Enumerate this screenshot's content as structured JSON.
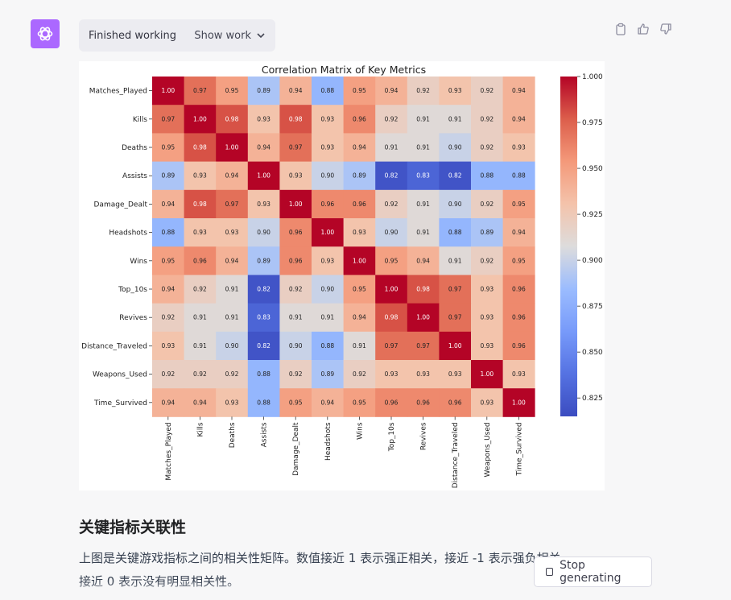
{
  "status": {
    "label": "Finished working",
    "show_label": "Show work"
  },
  "icons": {
    "assistant": "openai-logo-icon",
    "copy": "clipboard-icon",
    "like": "thumbs-up-icon",
    "dislike": "thumbs-down-icon",
    "chevron": "chevron-down-icon"
  },
  "colors": {
    "avatar": "#ab68ff",
    "cmap_low": "#3b4cc0",
    "cmap_mid": "#dddcdc",
    "cmap_high": "#b40426"
  },
  "chart_data": {
    "type": "heatmap",
    "title": "Correlation Matrix of Key Metrics",
    "labels": [
      "Matches_Played",
      "Kills",
      "Deaths",
      "Assists",
      "Damage_Dealt",
      "Headshots",
      "Wins",
      "Top_10s",
      "Revives",
      "Distance_Traveled",
      "Weapons_Used",
      "Time_Survived"
    ],
    "values": [
      [
        1.0,
        0.97,
        0.95,
        0.89,
        0.94,
        0.88,
        0.95,
        0.94,
        0.92,
        0.93,
        0.92,
        0.94
      ],
      [
        0.97,
        1.0,
        0.98,
        0.93,
        0.98,
        0.93,
        0.96,
        0.92,
        0.91,
        0.91,
        0.92,
        0.94
      ],
      [
        0.95,
        0.98,
        1.0,
        0.94,
        0.97,
        0.93,
        0.94,
        0.91,
        0.91,
        0.9,
        0.92,
        0.93
      ],
      [
        0.89,
        0.93,
        0.94,
        1.0,
        0.93,
        0.9,
        0.89,
        0.82,
        0.83,
        0.82,
        0.88,
        0.88
      ],
      [
        0.94,
        0.98,
        0.97,
        0.93,
        1.0,
        0.96,
        0.96,
        0.92,
        0.91,
        0.9,
        0.92,
        0.95
      ],
      [
        0.88,
        0.93,
        0.93,
        0.9,
        0.96,
        1.0,
        0.93,
        0.9,
        0.91,
        0.88,
        0.89,
        0.94
      ],
      [
        0.95,
        0.96,
        0.94,
        0.89,
        0.96,
        0.93,
        1.0,
        0.95,
        0.94,
        0.91,
        0.92,
        0.95
      ],
      [
        0.94,
        0.92,
        0.91,
        0.82,
        0.92,
        0.9,
        0.95,
        1.0,
        0.98,
        0.97,
        0.93,
        0.96
      ],
      [
        0.92,
        0.91,
        0.91,
        0.83,
        0.91,
        0.91,
        0.94,
        0.98,
        1.0,
        0.97,
        0.93,
        0.96
      ],
      [
        0.93,
        0.91,
        0.9,
        0.82,
        0.9,
        0.88,
        0.91,
        0.97,
        0.97,
        1.0,
        0.93,
        0.96
      ],
      [
        0.92,
        0.92,
        0.92,
        0.88,
        0.92,
        0.89,
        0.92,
        0.93,
        0.93,
        0.93,
        1.0,
        0.93
      ],
      [
        0.94,
        0.94,
        0.93,
        0.88,
        0.95,
        0.94,
        0.95,
        0.96,
        0.96,
        0.96,
        0.93,
        1.0
      ]
    ],
    "colorbar": {
      "min": 0.815,
      "max": 1.0,
      "ticks": [
        "0.825",
        "0.850",
        "0.875",
        "0.900",
        "0.925",
        "0.950",
        "0.975",
        "1.000"
      ]
    },
    "colormap": "coolwarm"
  },
  "section": {
    "heading": "关键指标关联性",
    "line1": "上图是关键游戏指标之间的相关性矩阵。数值接近 1 表示强正相关，接近 -1 表示强负相关，",
    "line2": "接近 0 表示没有明显相关性。"
  },
  "stop_button": {
    "label": "Stop generating"
  }
}
